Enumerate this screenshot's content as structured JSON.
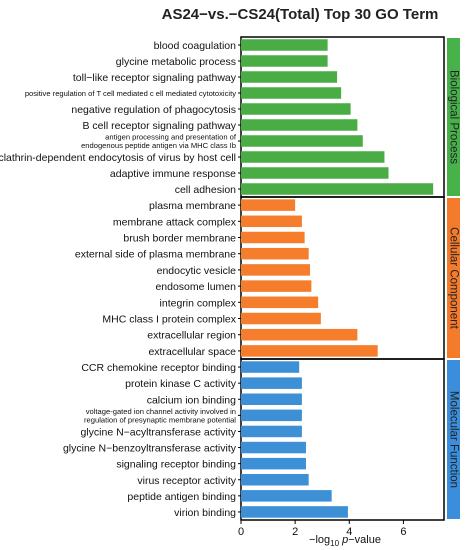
{
  "chart_data": {
    "type": "bar",
    "orientation": "horizontal",
    "title": "AS24−vs.−CS24(Total) Top 30 GO Term",
    "xlabel_parts": [
      "−log",
      "10",
      " p",
      "−value"
    ],
    "xlim": [
      0,
      7.5
    ],
    "xticks": [
      "0",
      "2",
      "4",
      "6"
    ],
    "xtick_values": [
      0,
      2,
      4,
      6
    ],
    "grid": false,
    "groups": [
      {
        "name": "Biological Process",
        "color": "#4aac44",
        "strip_color": "#48b24a",
        "categories": [
          "blood coagulation",
          "glycine metabolic process",
          "toll−like receptor signaling pathway",
          "positive regulation of T cell mediated c ell mediated cytotoxicity",
          "negative regulation of phagocytosis",
          "B cell receptor signaling pathway",
          "antigen processing and presentation of\nendogenous peptide antigen via MHC class Ib",
          "clathrin-dependent endocytosis of virus by host cell",
          "adaptive immune response",
          "cell adhesion"
        ],
        "values": [
          3.2,
          3.2,
          3.55,
          3.7,
          4.05,
          4.3,
          4.5,
          5.3,
          5.45,
          7.1
        ]
      },
      {
        "name": "Cellular Component",
        "color": "#f57d2b",
        "strip_color": "#f47b2c",
        "categories": [
          "plasma membrane",
          "membrane attack complex",
          "brush border membrane",
          "external side of plasma membrane",
          "endocytic vesicle",
          "endosome lumen",
          "integrin complex",
          "MHC class I protein complex",
          "extracellular region",
          "extracellular space"
        ],
        "values": [
          2.0,
          2.25,
          2.35,
          2.5,
          2.55,
          2.6,
          2.85,
          2.95,
          4.3,
          5.05
        ]
      },
      {
        "name": "Molecular Function",
        "color": "#3d8fd6",
        "strip_color": "#3a8edb",
        "categories": [
          "CCR chemokine receptor binding",
          "protein kinase C activity",
          "calcium ion binding",
          "voltage-gated ion channel activity involved in\nregulation of presynaptic membrane potential",
          "glycine N−acyltransferase activity",
          "glycine N−benzoyltransferase activity",
          "signaling receptor binding",
          "virus receptor activity",
          "peptide antigen binding",
          "virion binding"
        ],
        "values": [
          2.15,
          2.25,
          2.25,
          2.25,
          2.25,
          2.4,
          2.4,
          2.5,
          3.35,
          3.95
        ]
      }
    ]
  }
}
